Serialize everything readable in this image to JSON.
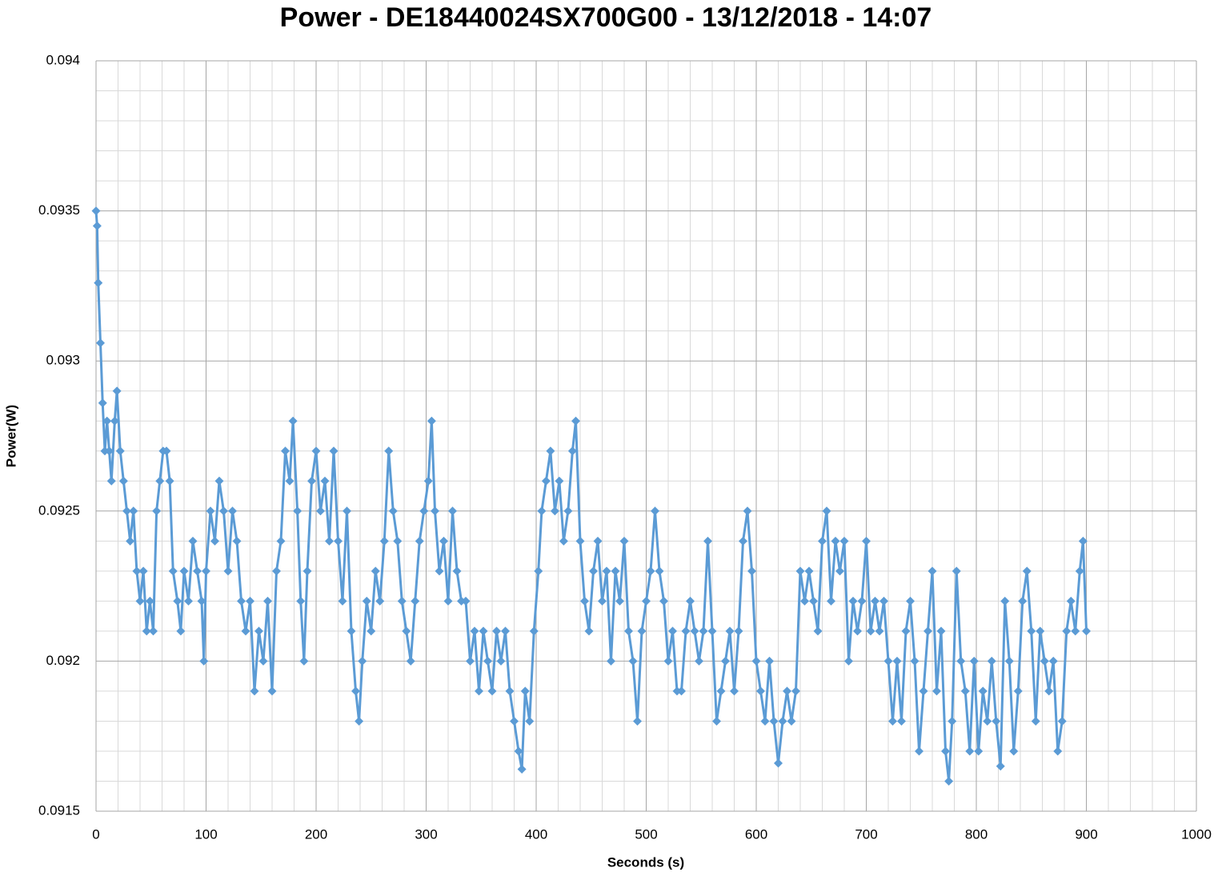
{
  "chart_data": {
    "type": "line",
    "title": "Power - DE18440024SX700G00 - 13/12/2018 - 14:07",
    "x_label": "Seconds (s)",
    "y_label": "Power(W)",
    "color": "#5b9bd5",
    "marker": "diamond",
    "grid": true,
    "minor_grid": true,
    "xlim": [
      0,
      1000
    ],
    "xticks": [
      0,
      100,
      200,
      300,
      400,
      500,
      600,
      700,
      800,
      900,
      1000
    ],
    "ylim": [
      0.0915,
      0.094
    ],
    "yticks": [
      0.0915,
      0.092,
      0.0925,
      0.093,
      0.0935,
      0.094
    ],
    "x": [
      0,
      1,
      2,
      4,
      6,
      8,
      10,
      12,
      14,
      17,
      19,
      22,
      25,
      28,
      31,
      34,
      37,
      40,
      43,
      46,
      49,
      52,
      55,
      58,
      61,
      64,
      67,
      70,
      74,
      77,
      80,
      84,
      88,
      92,
      96,
      98,
      100,
      104,
      108,
      112,
      116,
      120,
      124,
      128,
      132,
      136,
      140,
      144,
      148,
      152,
      156,
      160,
      164,
      168,
      172,
      176,
      179,
      183,
      186,
      189,
      192,
      196,
      200,
      204,
      208,
      212,
      216,
      220,
      224,
      228,
      232,
      236,
      239,
      242,
      246,
      250,
      254,
      258,
      262,
      266,
      270,
      274,
      278,
      282,
      286,
      290,
      294,
      298,
      302,
      305,
      308,
      312,
      316,
      320,
      324,
      328,
      332,
      336,
      340,
      344,
      348,
      352,
      356,
      360,
      364,
      368,
      372,
      376,
      380,
      384,
      387,
      390,
      394,
      398,
      402,
      405,
      409,
      413,
      417,
      421,
      425,
      429,
      433,
      436,
      440,
      444,
      448,
      452,
      456,
      460,
      464,
      468,
      472,
      476,
      480,
      484,
      488,
      492,
      496,
      500,
      504,
      508,
      512,
      516,
      520,
      524,
      528,
      532,
      536,
      540,
      544,
      548,
      552,
      556,
      560,
      564,
      568,
      572,
      576,
      580,
      584,
      588,
      592,
      596,
      600,
      604,
      608,
      612,
      616,
      620,
      624,
      628,
      632,
      636,
      640,
      644,
      648,
      652,
      656,
      660,
      664,
      668,
      672,
      676,
      680,
      684,
      688,
      692,
      696,
      700,
      704,
      708,
      712,
      716,
      720,
      724,
      728,
      732,
      736,
      740,
      744,
      748,
      752,
      756,
      760,
      764,
      768,
      772,
      775,
      778,
      782,
      786,
      790,
      794,
      798,
      802,
      806,
      810,
      814,
      818,
      822,
      826,
      830,
      834,
      838,
      842,
      846,
      850,
      854,
      858,
      862,
      866,
      870,
      874,
      878,
      882,
      886,
      890,
      894,
      897,
      900
    ],
    "values": [
      0.0935,
      0.09345,
      0.09326,
      0.09306,
      0.09286,
      0.0927,
      0.0928,
      0.0927,
      0.0926,
      0.0928,
      0.0929,
      0.0927,
      0.0926,
      0.0925,
      0.0924,
      0.0925,
      0.0923,
      0.0922,
      0.0923,
      0.0921,
      0.0922,
      0.0921,
      0.0925,
      0.0926,
      0.0927,
      0.0927,
      0.0926,
      0.0923,
      0.0922,
      0.0921,
      0.0923,
      0.0922,
      0.0924,
      0.0923,
      0.0922,
      0.092,
      0.0923,
      0.0925,
      0.0924,
      0.0926,
      0.0925,
      0.0923,
      0.0925,
      0.0924,
      0.0922,
      0.0921,
      0.0922,
      0.0919,
      0.0921,
      0.092,
      0.0922,
      0.0919,
      0.0923,
      0.0924,
      0.0927,
      0.0926,
      0.0928,
      0.0925,
      0.0922,
      0.092,
      0.0923,
      0.0926,
      0.0927,
      0.0925,
      0.0926,
      0.0924,
      0.0927,
      0.0924,
      0.0922,
      0.0925,
      0.0921,
      0.0919,
      0.0918,
      0.092,
      0.0922,
      0.0921,
      0.0923,
      0.0922,
      0.0924,
      0.0927,
      0.0925,
      0.0924,
      0.0922,
      0.0921,
      0.092,
      0.0922,
      0.0924,
      0.0925,
      0.0926,
      0.0928,
      0.0925,
      0.0923,
      0.0924,
      0.0922,
      0.0925,
      0.0923,
      0.0922,
      0.0922,
      0.092,
      0.0921,
      0.0919,
      0.0921,
      0.092,
      0.0919,
      0.0921,
      0.092,
      0.0921,
      0.0919,
      0.0918,
      0.0917,
      0.09164,
      0.0919,
      0.0918,
      0.0921,
      0.0923,
      0.0925,
      0.0926,
      0.0927,
      0.0925,
      0.0926,
      0.0924,
      0.0925,
      0.0927,
      0.0928,
      0.0924,
      0.0922,
      0.0921,
      0.0923,
      0.0924,
      0.0922,
      0.0923,
      0.092,
      0.0923,
      0.0922,
      0.0924,
      0.0921,
      0.092,
      0.0918,
      0.0921,
      0.0922,
      0.0923,
      0.0925,
      0.0923,
      0.0922,
      0.092,
      0.0921,
      0.0919,
      0.0919,
      0.0921,
      0.0922,
      0.0921,
      0.092,
      0.0921,
      0.0924,
      0.0921,
      0.0918,
      0.0919,
      0.092,
      0.0921,
      0.0919,
      0.0921,
      0.0924,
      0.0925,
      0.0923,
      0.092,
      0.0919,
      0.0918,
      0.092,
      0.0918,
      0.09166,
      0.0918,
      0.0919,
      0.0918,
      0.0919,
      0.0923,
      0.0922,
      0.0923,
      0.0922,
      0.0921,
      0.0924,
      0.0925,
      0.0922,
      0.0924,
      0.0923,
      0.0924,
      0.092,
      0.0922,
      0.0921,
      0.0922,
      0.0924,
      0.0921,
      0.0922,
      0.0921,
      0.0922,
      0.092,
      0.0918,
      0.092,
      0.0918,
      0.0921,
      0.0922,
      0.092,
      0.0917,
      0.0919,
      0.0921,
      0.0923,
      0.0919,
      0.0921,
      0.0917,
      0.0916,
      0.0918,
      0.0923,
      0.092,
      0.0919,
      0.0917,
      0.092,
      0.0917,
      0.0919,
      0.0918,
      0.092,
      0.0918,
      0.09165,
      0.0922,
      0.092,
      0.0917,
      0.0919,
      0.0922,
      0.0923,
      0.0921,
      0.0918,
      0.0921,
      0.092,
      0.0919,
      0.092,
      0.0917,
      0.0918,
      0.0921,
      0.0922,
      0.0921,
      0.0923,
      0.0924,
      0.0921
    ]
  }
}
